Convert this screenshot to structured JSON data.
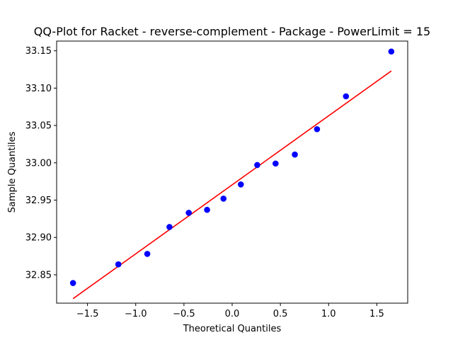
{
  "chart_data": {
    "type": "scatter",
    "title": "QQ-Plot for Racket - reverse-complement - Package - PowerLimit = 15",
    "xlabel": "Theoretical Quantiles",
    "ylabel": "Sample Quantiles",
    "xlim": [
      -1.82,
      1.82
    ],
    "ylim": [
      32.812,
      33.163
    ],
    "xticks": [
      -1.5,
      -1.0,
      -0.5,
      0.0,
      0.5,
      1.0,
      1.5
    ],
    "xtick_labels": [
      "−1.5",
      "−1.0",
      "−0.5",
      "0.0",
      "0.5",
      "1.0",
      "1.5"
    ],
    "yticks": [
      32.85,
      32.9,
      32.95,
      33.0,
      33.05,
      33.1,
      33.15
    ],
    "ytick_labels": [
      "32.85",
      "32.90",
      "32.95",
      "33.00",
      "33.05",
      "33.10",
      "33.15"
    ],
    "grid": false,
    "series": [
      {
        "kind": "points",
        "color": "#0000ff",
        "x": [
          -1.65,
          -1.18,
          -0.88,
          -0.65,
          -0.45,
          -0.26,
          -0.09,
          0.09,
          0.26,
          0.45,
          0.65,
          0.88,
          1.18,
          1.65
        ],
        "y": [
          32.839,
          32.864,
          32.878,
          32.914,
          32.933,
          32.937,
          32.952,
          32.971,
          32.997,
          32.999,
          33.011,
          33.045,
          33.089,
          33.149
        ]
      },
      {
        "kind": "line",
        "color": "#ff0000",
        "x": [
          -1.65,
          1.65
        ],
        "y": [
          32.818,
          33.123
        ]
      }
    ]
  }
}
